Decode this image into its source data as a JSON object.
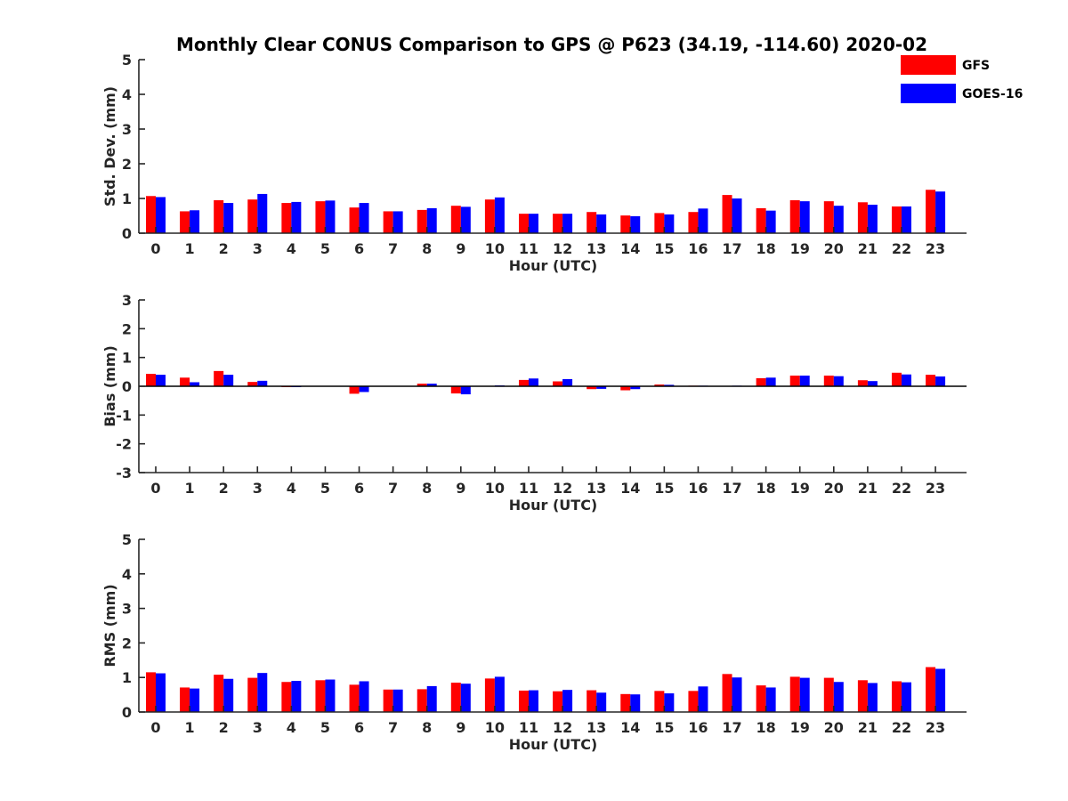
{
  "title": "Monthly Clear CONUS Comparison to GPS @ P623 (34.19, -114.60) 2020-02",
  "legend": [
    {
      "name": "GFS",
      "color": "#ff0000"
    },
    {
      "name": "GOES-16",
      "color": "#0000ff"
    }
  ],
  "chart_data": [
    {
      "type": "bar",
      "xlabel": "Hour (UTC)",
      "ylabel": "Std. Dev. (mm)",
      "ylim": [
        0,
        5
      ],
      "yticks": [
        0,
        1,
        2,
        3,
        4,
        5
      ],
      "categories": [
        "0",
        "1",
        "2",
        "3",
        "4",
        "5",
        "6",
        "7",
        "8",
        "9",
        "10",
        "11",
        "12",
        "13",
        "14",
        "15",
        "16",
        "17",
        "18",
        "19",
        "20",
        "21",
        "22",
        "23"
      ],
      "series": [
        {
          "name": "GFS",
          "color": "#ff0000",
          "values": [
            1.07,
            0.63,
            0.95,
            0.97,
            0.87,
            0.92,
            0.74,
            0.63,
            0.67,
            0.79,
            0.97,
            0.56,
            0.56,
            0.61,
            0.51,
            0.58,
            0.61,
            1.1,
            0.72,
            0.95,
            0.92,
            0.89,
            0.77,
            1.25
          ]
        },
        {
          "name": "GOES-16",
          "color": "#0000ff",
          "values": [
            1.04,
            0.66,
            0.87,
            1.13,
            0.9,
            0.94,
            0.87,
            0.63,
            0.72,
            0.76,
            1.03,
            0.56,
            0.56,
            0.54,
            0.49,
            0.54,
            0.71,
            1.0,
            0.65,
            0.92,
            0.79,
            0.82,
            0.77,
            1.2
          ]
        }
      ]
    },
    {
      "type": "bar",
      "xlabel": "Hour (UTC)",
      "ylabel": "Bias (mm)",
      "ylim": [
        -3,
        3
      ],
      "yticks": [
        -3,
        -2,
        -1,
        0,
        1,
        2,
        3
      ],
      "categories": [
        "0",
        "1",
        "2",
        "3",
        "4",
        "5",
        "6",
        "7",
        "8",
        "9",
        "10",
        "11",
        "12",
        "13",
        "14",
        "15",
        "16",
        "17",
        "18",
        "19",
        "20",
        "21",
        "22",
        "23"
      ],
      "series": [
        {
          "name": "GFS",
          "color": "#ff0000",
          "values": [
            0.43,
            0.3,
            0.53,
            0.15,
            -0.03,
            0.0,
            -0.26,
            0.0,
            0.09,
            -0.25,
            0.0,
            0.22,
            0.17,
            -0.1,
            -0.14,
            0.06,
            0.02,
            0.0,
            0.28,
            0.37,
            0.37,
            0.21,
            0.47,
            0.4
          ]
        },
        {
          "name": "GOES-16",
          "color": "#0000ff",
          "values": [
            0.4,
            0.14,
            0.4,
            0.19,
            -0.03,
            0.0,
            -0.2,
            0.0,
            0.09,
            -0.28,
            0.03,
            0.27,
            0.25,
            -0.09,
            -0.1,
            0.05,
            0.02,
            0.02,
            0.3,
            0.37,
            0.35,
            0.18,
            0.41,
            0.34
          ]
        }
      ]
    },
    {
      "type": "bar",
      "xlabel": "Hour (UTC)",
      "ylabel": "RMS (mm)",
      "ylim": [
        0,
        5
      ],
      "yticks": [
        0,
        1,
        2,
        3,
        4,
        5
      ],
      "categories": [
        "0",
        "1",
        "2",
        "3",
        "4",
        "5",
        "6",
        "7",
        "8",
        "9",
        "10",
        "11",
        "12",
        "13",
        "14",
        "15",
        "16",
        "17",
        "18",
        "19",
        "20",
        "21",
        "22",
        "23"
      ],
      "series": [
        {
          "name": "GFS",
          "color": "#ff0000",
          "values": [
            1.15,
            0.71,
            1.08,
            0.99,
            0.87,
            0.92,
            0.79,
            0.65,
            0.66,
            0.85,
            0.97,
            0.62,
            0.6,
            0.63,
            0.52,
            0.61,
            0.61,
            1.1,
            0.77,
            1.02,
            0.99,
            0.92,
            0.89,
            1.3
          ]
        },
        {
          "name": "GOES-16",
          "color": "#0000ff",
          "values": [
            1.12,
            0.68,
            0.96,
            1.13,
            0.9,
            0.94,
            0.89,
            0.65,
            0.75,
            0.82,
            1.02,
            0.63,
            0.64,
            0.56,
            0.51,
            0.54,
            0.74,
            1.0,
            0.71,
            0.99,
            0.87,
            0.84,
            0.86,
            1.25
          ]
        }
      ]
    }
  ]
}
